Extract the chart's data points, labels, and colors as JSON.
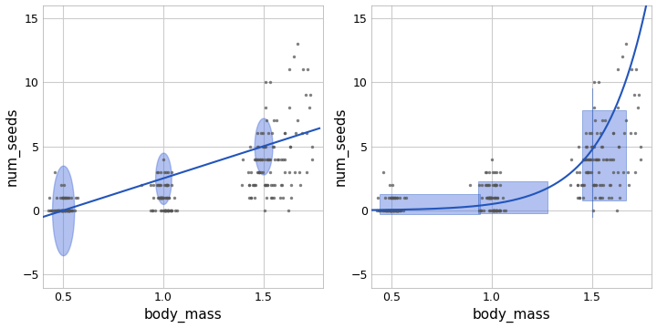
{
  "ylim": [
    -6,
    16
  ],
  "xlim": [
    0.4,
    1.8
  ],
  "yticks": [
    -5,
    0,
    5,
    10,
    15
  ],
  "xticks": [
    0.5,
    1.0,
    1.5
  ],
  "xlabel": "body_mass",
  "ylabel": "num_seeds",
  "bg_color": "#FFFFFF",
  "grid_color": "#CCCCCC",
  "point_color": "#555555",
  "point_size": 6,
  "line_color": "#2255BB",
  "ci_color": "#5577DD",
  "ci_alpha": 0.45,
  "linear_slope": 5.0,
  "linear_intercept": -2.5,
  "glm_a": -5.2,
  "glm_b": 4.5,
  "seed": 1234,
  "n_per_group": 80,
  "bm_means": [
    0.5,
    1.0,
    1.5
  ],
  "bm_sds": [
    0.03,
    0.03,
    0.05
  ],
  "seed_means": [
    0.2,
    1.0,
    3.5
  ],
  "extra_bm_range": [
    1.58,
    1.75
  ],
  "n_extra": 25
}
